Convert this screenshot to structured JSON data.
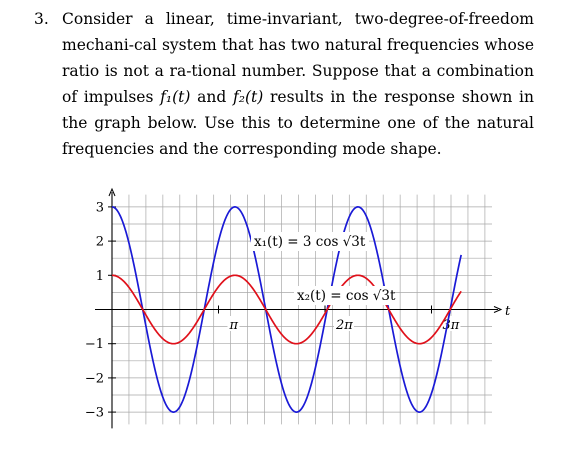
{
  "problem": {
    "number": "3.",
    "text_1": "Consider a linear, time-invariant, two-degree-of-freedom mechani-cal system that has two natural frequencies whose ratio is not a ra-tional number. Suppose that a combination of impulses ",
    "f1": "f₁(t)",
    "text_2": " and ",
    "f2": "f₂(t)",
    "text_3": " results in the response shown in the graph below. Use this to determine one of the natural frequencies and the corresponding mode shape."
  },
  "chart_data": {
    "type": "line",
    "xlabel": "t",
    "xlim": [
      0,
      10.3
    ],
    "ylim": [
      -3.3,
      3.3
    ],
    "grid": true,
    "y_ticks": [
      {
        "value": 3,
        "label": "3"
      },
      {
        "value": 2,
        "label": "2"
      },
      {
        "value": 1,
        "label": "1"
      },
      {
        "value": -1,
        "label": "−1"
      },
      {
        "value": -2,
        "label": "−2"
      },
      {
        "value": -3,
        "label": "−3"
      }
    ],
    "x_ticks": [
      {
        "value": 3.14159,
        "label": "π"
      },
      {
        "value": 6.28319,
        "label": "2π"
      },
      {
        "value": 9.42478,
        "label": "3π"
      }
    ],
    "series": [
      {
        "name": "x₁(t) = 3 cos √3t",
        "amplitude": 3,
        "omega": 1.7320508,
        "color": "#1a1ad6"
      },
      {
        "name": "x₂(t) = cos √3t",
        "amplitude": 1,
        "omega": 1.7320508,
        "color": "#e0101a"
      }
    ]
  }
}
